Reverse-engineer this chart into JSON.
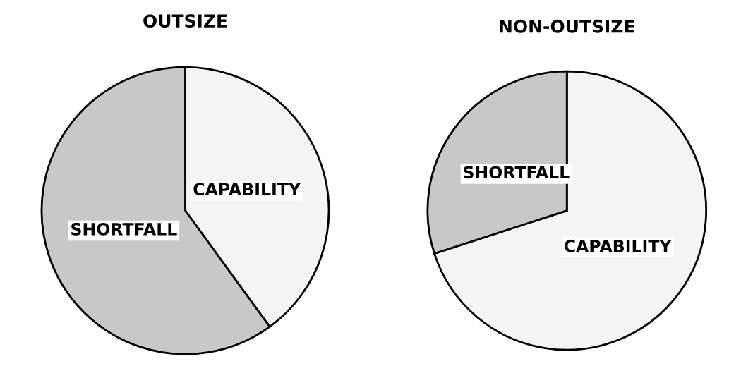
{
  "chart_data": [
    {
      "type": "pie",
      "title": "OUTSIZE",
      "categories": [
        "CAPABILITY",
        "SHORTFALL"
      ],
      "values": [
        40,
        60
      ],
      "colors": [
        "#f4f4f4",
        "#c8c8c8"
      ]
    },
    {
      "type": "pie",
      "title": "NON-OUTSIZE",
      "categories": [
        "CAPABILITY",
        "SHORTFALL"
      ],
      "values": [
        70,
        30
      ],
      "colors": [
        "#f4f4f4",
        "#c8c8c8"
      ]
    }
  ]
}
